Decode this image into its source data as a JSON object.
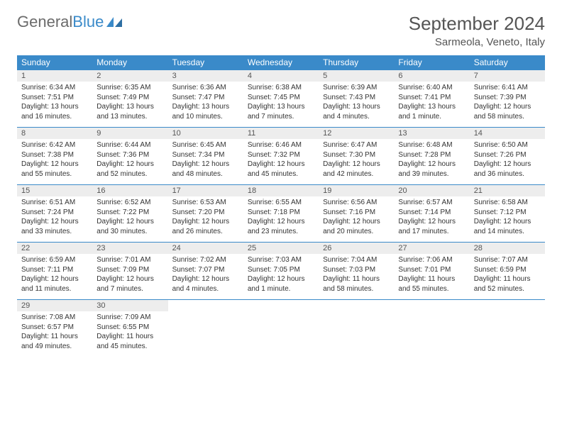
{
  "logo": {
    "text1": "General",
    "text2": "Blue"
  },
  "title": "September 2024",
  "location": "Sarmeola, Veneto, Italy",
  "colors": {
    "header_bg": "#3a8ac9",
    "header_text": "#ffffff",
    "daynum_bg": "#ededed",
    "row_border": "#3a8ac9",
    "body_text": "#333333",
    "title_text": "#555555",
    "page_bg": "#ffffff"
  },
  "dow": [
    "Sunday",
    "Monday",
    "Tuesday",
    "Wednesday",
    "Thursday",
    "Friday",
    "Saturday"
  ],
  "weeks": [
    [
      {
        "n": "1",
        "sr": "6:34 AM",
        "ss": "7:51 PM",
        "dl": "13 hours and 16 minutes."
      },
      {
        "n": "2",
        "sr": "6:35 AM",
        "ss": "7:49 PM",
        "dl": "13 hours and 13 minutes."
      },
      {
        "n": "3",
        "sr": "6:36 AM",
        "ss": "7:47 PM",
        "dl": "13 hours and 10 minutes."
      },
      {
        "n": "4",
        "sr": "6:38 AM",
        "ss": "7:45 PM",
        "dl": "13 hours and 7 minutes."
      },
      {
        "n": "5",
        "sr": "6:39 AM",
        "ss": "7:43 PM",
        "dl": "13 hours and 4 minutes."
      },
      {
        "n": "6",
        "sr": "6:40 AM",
        "ss": "7:41 PM",
        "dl": "13 hours and 1 minute."
      },
      {
        "n": "7",
        "sr": "6:41 AM",
        "ss": "7:39 PM",
        "dl": "12 hours and 58 minutes."
      }
    ],
    [
      {
        "n": "8",
        "sr": "6:42 AM",
        "ss": "7:38 PM",
        "dl": "12 hours and 55 minutes."
      },
      {
        "n": "9",
        "sr": "6:44 AM",
        "ss": "7:36 PM",
        "dl": "12 hours and 52 minutes."
      },
      {
        "n": "10",
        "sr": "6:45 AM",
        "ss": "7:34 PM",
        "dl": "12 hours and 48 minutes."
      },
      {
        "n": "11",
        "sr": "6:46 AM",
        "ss": "7:32 PM",
        "dl": "12 hours and 45 minutes."
      },
      {
        "n": "12",
        "sr": "6:47 AM",
        "ss": "7:30 PM",
        "dl": "12 hours and 42 minutes."
      },
      {
        "n": "13",
        "sr": "6:48 AM",
        "ss": "7:28 PM",
        "dl": "12 hours and 39 minutes."
      },
      {
        "n": "14",
        "sr": "6:50 AM",
        "ss": "7:26 PM",
        "dl": "12 hours and 36 minutes."
      }
    ],
    [
      {
        "n": "15",
        "sr": "6:51 AM",
        "ss": "7:24 PM",
        "dl": "12 hours and 33 minutes."
      },
      {
        "n": "16",
        "sr": "6:52 AM",
        "ss": "7:22 PM",
        "dl": "12 hours and 30 minutes."
      },
      {
        "n": "17",
        "sr": "6:53 AM",
        "ss": "7:20 PM",
        "dl": "12 hours and 26 minutes."
      },
      {
        "n": "18",
        "sr": "6:55 AM",
        "ss": "7:18 PM",
        "dl": "12 hours and 23 minutes."
      },
      {
        "n": "19",
        "sr": "6:56 AM",
        "ss": "7:16 PM",
        "dl": "12 hours and 20 minutes."
      },
      {
        "n": "20",
        "sr": "6:57 AM",
        "ss": "7:14 PM",
        "dl": "12 hours and 17 minutes."
      },
      {
        "n": "21",
        "sr": "6:58 AM",
        "ss": "7:12 PM",
        "dl": "12 hours and 14 minutes."
      }
    ],
    [
      {
        "n": "22",
        "sr": "6:59 AM",
        "ss": "7:11 PM",
        "dl": "12 hours and 11 minutes."
      },
      {
        "n": "23",
        "sr": "7:01 AM",
        "ss": "7:09 PM",
        "dl": "12 hours and 7 minutes."
      },
      {
        "n": "24",
        "sr": "7:02 AM",
        "ss": "7:07 PM",
        "dl": "12 hours and 4 minutes."
      },
      {
        "n": "25",
        "sr": "7:03 AM",
        "ss": "7:05 PM",
        "dl": "12 hours and 1 minute."
      },
      {
        "n": "26",
        "sr": "7:04 AM",
        "ss": "7:03 PM",
        "dl": "11 hours and 58 minutes."
      },
      {
        "n": "27",
        "sr": "7:06 AM",
        "ss": "7:01 PM",
        "dl": "11 hours and 55 minutes."
      },
      {
        "n": "28",
        "sr": "7:07 AM",
        "ss": "6:59 PM",
        "dl": "11 hours and 52 minutes."
      }
    ],
    [
      {
        "n": "29",
        "sr": "7:08 AM",
        "ss": "6:57 PM",
        "dl": "11 hours and 49 minutes."
      },
      {
        "n": "30",
        "sr": "7:09 AM",
        "ss": "6:55 PM",
        "dl": "11 hours and 45 minutes."
      },
      null,
      null,
      null,
      null,
      null
    ]
  ],
  "labels": {
    "sunrise": "Sunrise:",
    "sunset": "Sunset:",
    "daylight": "Daylight:"
  }
}
